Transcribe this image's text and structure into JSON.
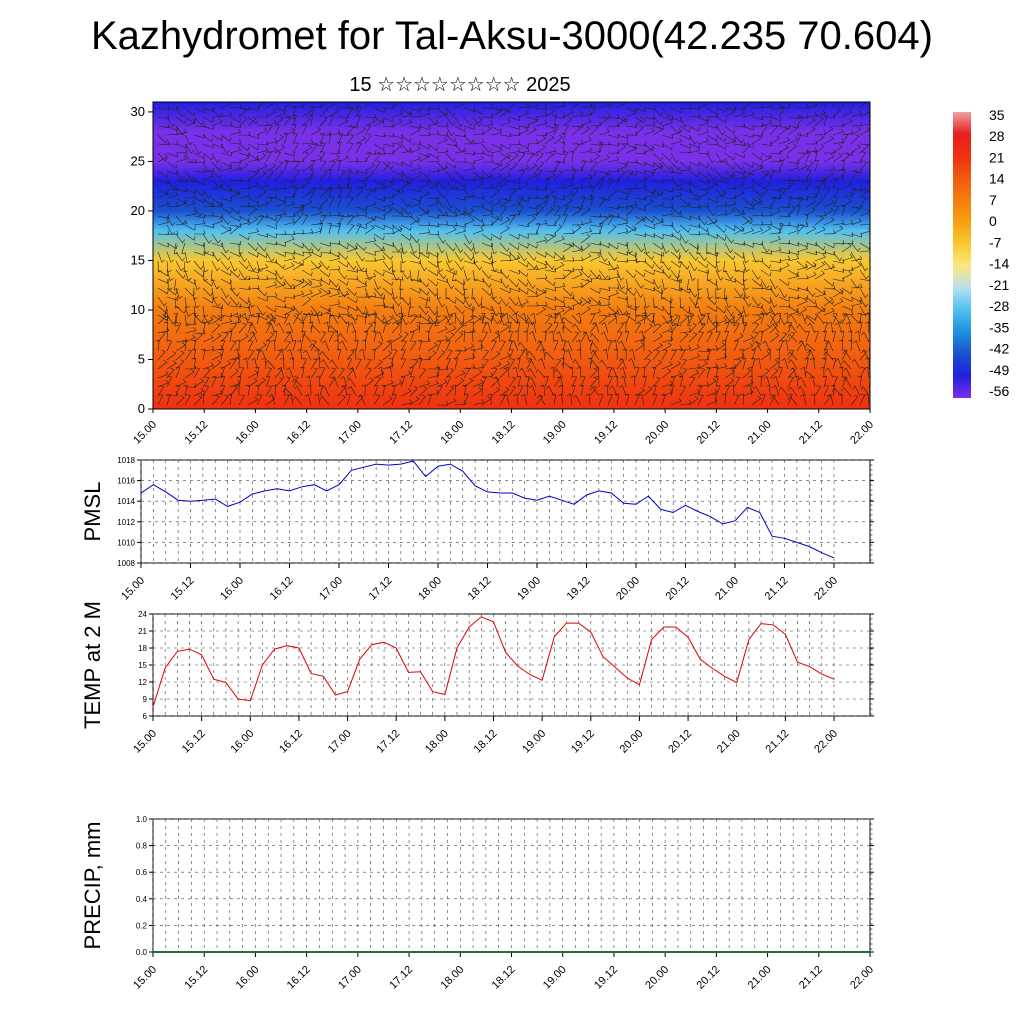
{
  "header": {
    "title": "Kazhydromet for Tal-Aksu-3000(42.235 70.604)",
    "subtitle": "15 ☆☆☆☆☆☆☆☆ 2025"
  },
  "chart_data": [
    {
      "type": "heatmap",
      "name": "upper-air temperature and wind",
      "title": "",
      "xlabel": "",
      "ylabel": "",
      "x_ticks": [
        "15.00",
        "15.12",
        "16.00",
        "16.12",
        "17.00",
        "17.12",
        "18.00",
        "18.12",
        "19.00",
        "19.12",
        "20.00",
        "20.12",
        "21.00",
        "21.12",
        "22.00"
      ],
      "y_ticks": [
        0,
        5,
        10,
        15,
        20,
        25,
        30
      ],
      "ylim": [
        0,
        31
      ],
      "overlay": "wind barbs",
      "colorbar": {
        "labels": [
          "35",
          "28",
          "21",
          "14",
          "7",
          "0",
          "-7",
          "-14",
          "-21",
          "-28",
          "-35",
          "-42",
          "-49",
          "-56"
        ],
        "colors": [
          "#f0a0a0",
          "#e52020",
          "#f03010",
          "#f25a10",
          "#f47d10",
          "#f7a010",
          "#f9c830",
          "#fbe880",
          "#b8e0f0",
          "#50c0f0",
          "#1e90e0",
          "#1a50d0",
          "#2020e0",
          "#7a30e8"
        ]
      },
      "levels_temperature": [
        {
          "height": 0,
          "temp": 18
        },
        {
          "height": 5,
          "temp": 12
        },
        {
          "height": 10,
          "temp": 4
        },
        {
          "height": 15,
          "temp": -6
        },
        {
          "height": 18,
          "temp": -28
        },
        {
          "height": 20,
          "temp": -40
        },
        {
          "height": 23,
          "temp": -52
        },
        {
          "height": 25,
          "temp": -60
        },
        {
          "height": 28,
          "temp": -54
        },
        {
          "height": 31,
          "temp": -50
        }
      ]
    },
    {
      "type": "line",
      "ylabel": "PMSL",
      "ylim": [
        1008,
        1018
      ],
      "y_ticks": [
        1008,
        1010,
        1012,
        1014,
        1016,
        1018
      ],
      "x_ticks": [
        "15.00",
        "15.12",
        "16.00",
        "16.12",
        "17.00",
        "17.12",
        "18.00",
        "18.12",
        "19.00",
        "19.12",
        "20.00",
        "20.12",
        "21.00",
        "21.12",
        "22.00"
      ],
      "series": [
        {
          "color": "#0000cc",
          "values": [
            1014.8,
            1015.6,
            1014.9,
            1014.1,
            1014.0,
            1014.1,
            1014.2,
            1013.5,
            1013.9,
            1014.7,
            1015.0,
            1015.2,
            1015.0,
            1015.4,
            1015.6,
            1015.0,
            1015.6,
            1017.0,
            1017.3,
            1017.6,
            1017.5,
            1017.6,
            1017.9,
            1016.4,
            1017.4,
            1017.6,
            1016.9,
            1015.5,
            1014.9,
            1014.8,
            1014.8,
            1014.3,
            1014.1,
            1014.5,
            1014.1,
            1013.7,
            1014.6,
            1015.0,
            1014.8,
            1013.8,
            1013.7,
            1014.5,
            1013.2,
            1012.9,
            1013.6,
            1013.0,
            1012.5,
            1011.8,
            1012.1,
            1013.4,
            1012.9,
            1010.6,
            1010.4,
            1010.0,
            1009.6,
            1009.0,
            1008.5
          ]
        }
      ]
    },
    {
      "type": "line",
      "ylabel": "TEMP at 2 M",
      "ylim": [
        6,
        24
      ],
      "y_ticks": [
        6,
        9,
        12,
        15,
        18,
        21,
        24
      ],
      "x_ticks": [
        "15.00",
        "15.12",
        "16.00",
        "16.12",
        "17.00",
        "17.12",
        "18.00",
        "18.12",
        "19.00",
        "19.12",
        "20.00",
        "20.12",
        "21.00",
        "21.12",
        "22.00"
      ],
      "series": [
        {
          "color": "#e00000",
          "values": [
            7.6,
            14.5,
            17.4,
            17.8,
            16.8,
            12.5,
            11.9,
            9.0,
            8.7,
            15.0,
            17.8,
            18.4,
            18.0,
            13.5,
            13.0,
            9.7,
            10.3,
            16.0,
            18.6,
            19.0,
            18.0,
            13.7,
            13.8,
            10.3,
            9.8,
            18.0,
            21.7,
            23.5,
            22.6,
            17.2,
            14.8,
            13.3,
            12.3,
            20.0,
            22.4,
            22.4,
            20.8,
            16.5,
            14.6,
            12.7,
            11.5,
            19.5,
            21.7,
            21.7,
            19.9,
            16.0,
            14.4,
            13.0,
            11.9,
            19.5,
            22.3,
            22.1,
            20.4,
            15.5,
            14.7,
            13.4,
            12.5
          ]
        }
      ]
    },
    {
      "type": "bar",
      "ylabel": "PRECIP, mm",
      "ylim": [
        0,
        1
      ],
      "y_ticks": [
        "0.0",
        "0.2",
        "0.4",
        "0.6",
        "0.8",
        "1.0"
      ],
      "x_ticks": [
        "15.00",
        "15.12",
        "16.00",
        "16.12",
        "17.00",
        "17.12",
        "18.00",
        "18.12",
        "19.00",
        "19.12",
        "20.00",
        "20.12",
        "21.00",
        "21.12",
        "22.00"
      ],
      "values": []
    }
  ]
}
